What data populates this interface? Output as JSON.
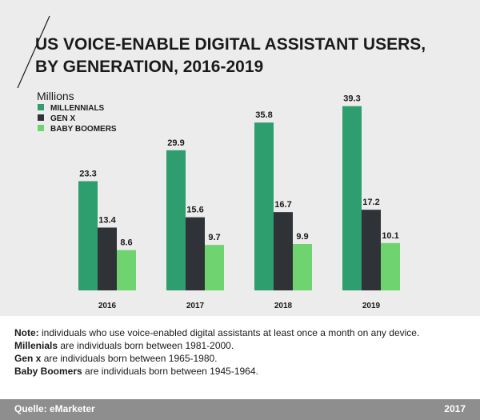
{
  "chart_data": {
    "type": "bar",
    "title_line1": "US VOICE-ENABLE DIGITAL ASSISTANT USERS,",
    "title_line2": "BY GENERATION, 2016-2019",
    "ylabel": "Millions",
    "categories": [
      "2016",
      "2017",
      "2018",
      "2019"
    ],
    "series": [
      {
        "name": "MILLENNIALS",
        "color": "#2e9e6e",
        "values": [
          23.3,
          29.9,
          35.8,
          39.3
        ]
      },
      {
        "name": "GEN X",
        "color": "#2f3237",
        "values": [
          13.4,
          15.6,
          16.7,
          17.2
        ]
      },
      {
        "name": "BABY BOOMERS",
        "color": "#6fd36f",
        "values": [
          8.6,
          9.7,
          9.9,
          10.1
        ]
      }
    ],
    "ylim": [
      0,
      45
    ],
    "legend": "top-left"
  },
  "notes": [
    {
      "bold": "Note:",
      "text": " individuals who use voice-enabled digital assistants at least once a month on any device."
    },
    {
      "bold": "Millenials",
      "text": " are individuals born between 1981-2000."
    },
    {
      "bold": "Gen x",
      "text": " are individuals born between 1965-1980."
    },
    {
      "bold": "Baby Boomers",
      "text": " are individuals born between 1945-1964."
    }
  ],
  "footer": {
    "source": "Quelle: eMarketer",
    "year": "2017"
  }
}
